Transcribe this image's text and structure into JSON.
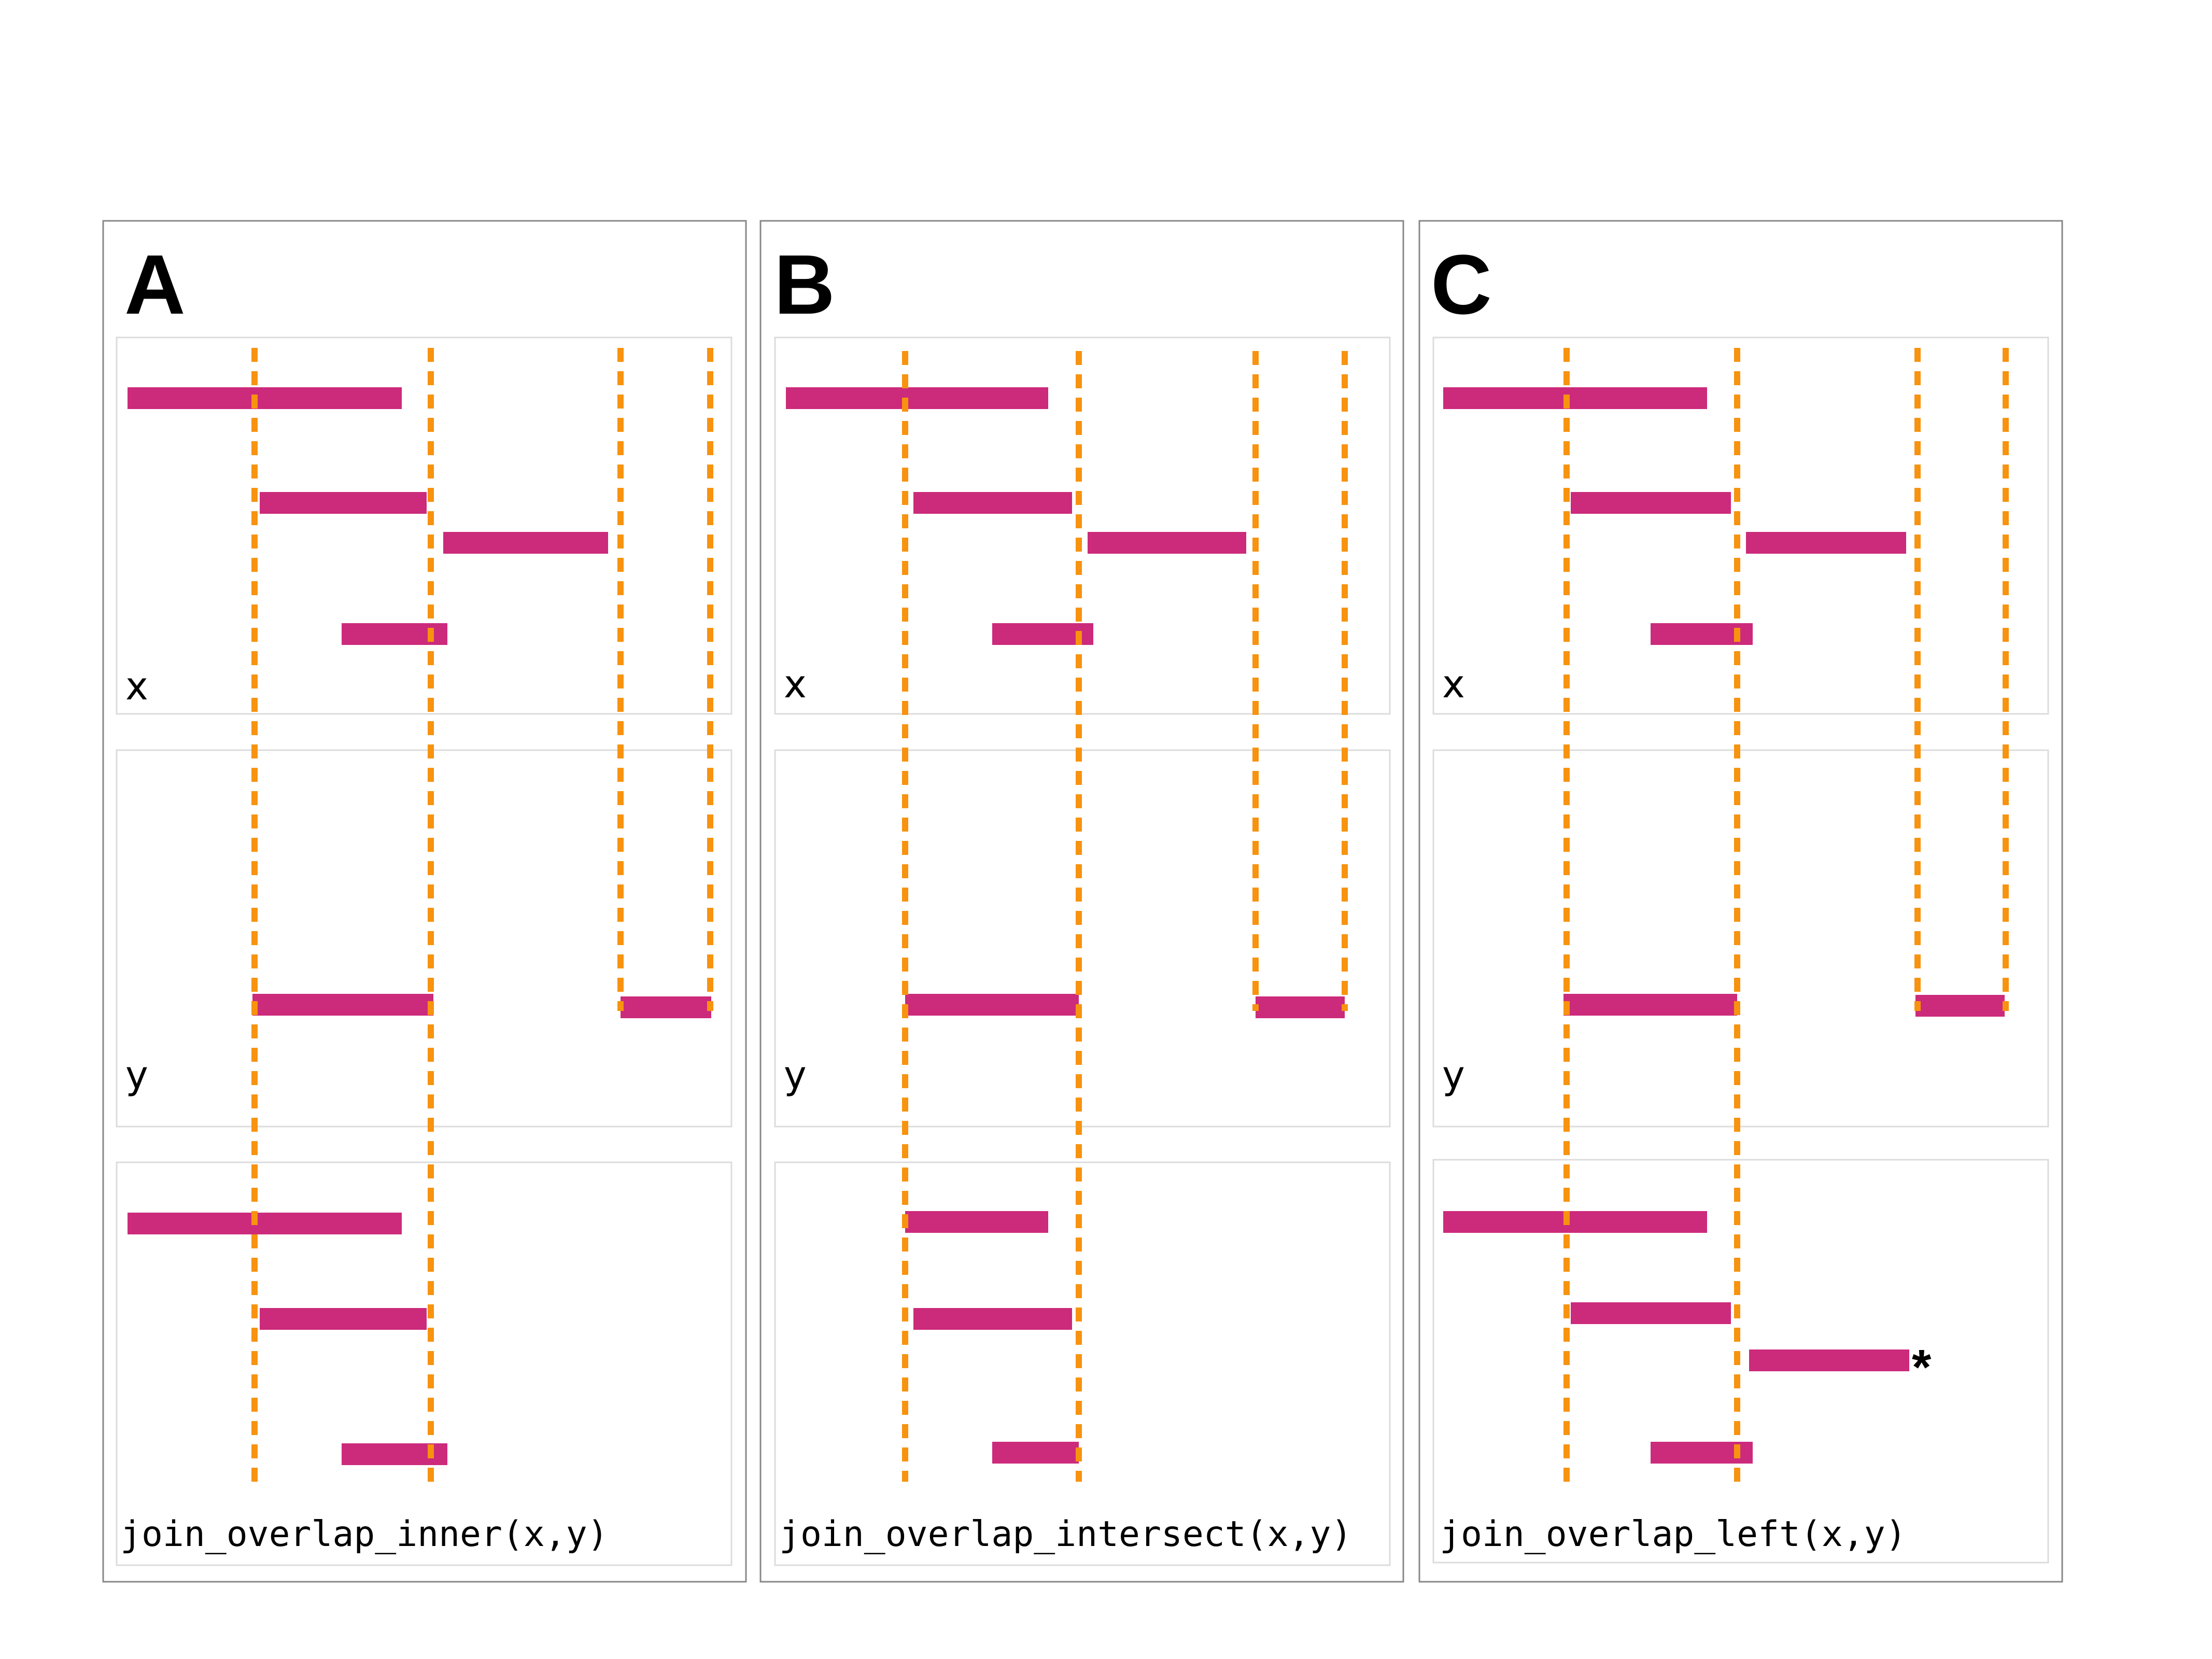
{
  "colors": {
    "range": "#cc2a7b",
    "guide": "#f7930f",
    "panel_border": "#888888",
    "track_border": "#dcdcdc"
  },
  "panels": [
    {
      "letter": "A",
      "x_label": "x",
      "y_label": "y",
      "result_label": "join_overlap_inner(x,y)"
    },
    {
      "letter": "B",
      "x_label": "x",
      "y_label": "y",
      "result_label": "join_overlap_intersect(x,y)"
    },
    {
      "letter": "C",
      "x_label": "x",
      "y_label": "y",
      "result_label": "join_overlap_left(x,y)",
      "marker": "*"
    }
  ]
}
